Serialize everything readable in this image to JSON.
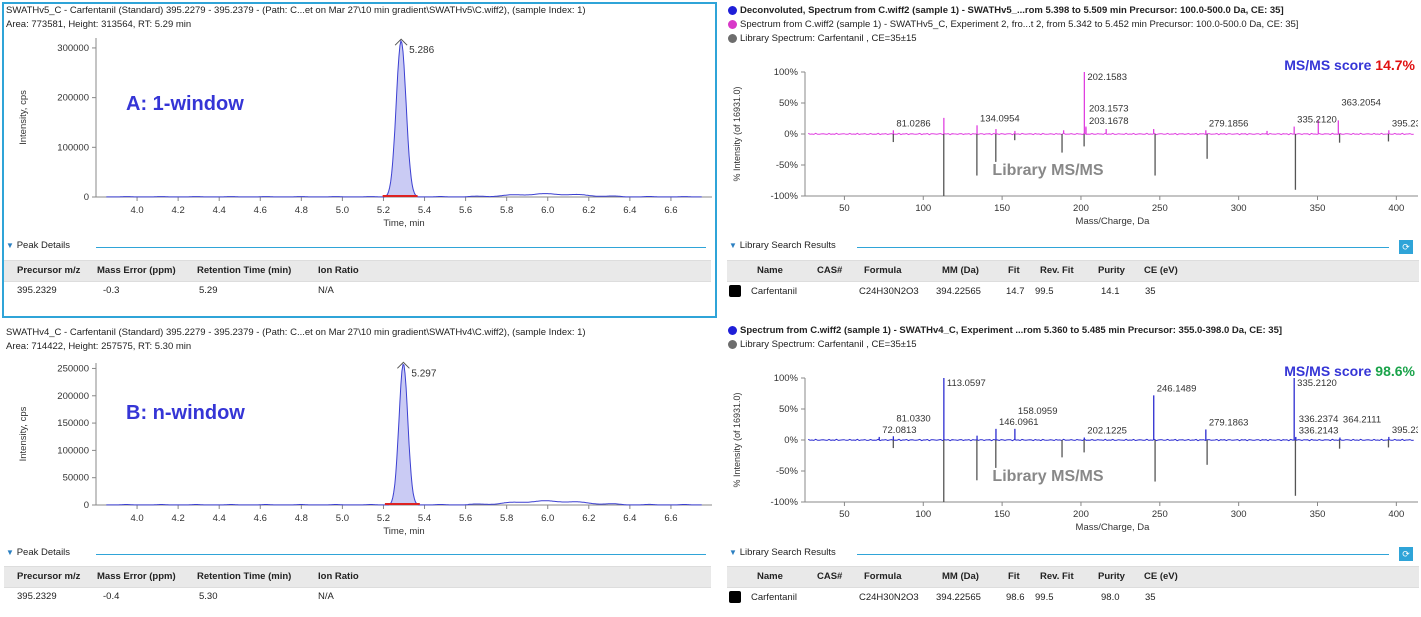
{
  "colors": {
    "selection": "#2fa4d8",
    "trace_blue": "#3b3fd1",
    "label_blue": "#3535d6",
    "library": "#555555",
    "magenta": "#e040e0",
    "score_red": "#e01010",
    "score_green": "#1aa34a",
    "deconv_dot": "#1f1fd8",
    "spectrum_dot": "#d838c8",
    "library_dot": "#6d6d6d"
  },
  "icons": {
    "expand": "triangle-down-icon",
    "search": "search-icon",
    "library_row": "library-entry-icon"
  },
  "panelA": {
    "title": "SWATHv5_C - Carfentanil (Standard) 395.2279 - 395.2379 - (Path: C...et on Mar 27\\10 min gradient\\SWATHv5\\C.wiff2), (sample Index: 1)",
    "stats": "Area: 773581, Height: 313564, RT: 5.29 min",
    "annotation": "A: 1-window",
    "peak_label": "5.286",
    "ylabel": "Intensity, cps",
    "xlabel": "Time, min",
    "section": "Peak Details",
    "table": {
      "headers": [
        "Precursor m/z",
        "Mass Error (ppm)",
        "Retention Time (min)",
        "Ion Ratio"
      ],
      "row": [
        "395.2329",
        "-0.3",
        "5.29",
        "N/A"
      ]
    }
  },
  "panelB": {
    "title": "SWATHv4_C - Carfentanil (Standard) 395.2279 - 395.2379 - (Path: C...et on Mar 27\\10 min gradient\\SWATHv4\\C.wiff2), (sample Index: 1)",
    "stats": "Area: 714422, Height: 257575, RT: 5.30 min",
    "annotation": "B: n-window",
    "peak_label": "5.297",
    "ylabel": "Intensity, cps",
    "xlabel": "Time, min",
    "section": "Peak Details",
    "table": {
      "headers": [
        "Precursor m/z",
        "Mass Error (ppm)",
        "Retention Time (min)",
        "Ion Ratio"
      ],
      "row": [
        "395.2329",
        "-0.4",
        "5.30",
        "N/A"
      ]
    }
  },
  "spectrumA": {
    "legend1": "Deconvoluted, Spectrum from C.wiff2 (sample 1) - SWATHv5_...rom 5.398 to 5.509 min Precursor: 100.0-500.0 Da, CE: 35]",
    "legend2": "Spectrum from C.wiff2 (sample 1) - SWATHv5_C, Experiment 2, fro...t 2, from 5.342 to 5.452 min Precursor: 100.0-500.0 Da, CE: 35]",
    "legend3": "Library Spectrum: Carfentanil , CE=35±15",
    "score_label": "MS/MS score",
    "score_value": "14.7%",
    "library_label": "Library MS/MS",
    "ylabel": "% Intensity (of 16931.0)",
    "xlabel": "Mass/Charge, Da",
    "section": "Library Search Results",
    "table": {
      "headers": [
        "Name",
        "CAS#",
        "Formula",
        "MM (Da)",
        "Fit",
        "Rev. Fit",
        "Purity",
        "CE (eV)"
      ],
      "row": [
        "Carfentanil",
        "",
        "C24H30N2O3",
        "394.22565",
        "14.7",
        "99.5",
        "14.1",
        "35"
      ]
    }
  },
  "spectrumB": {
    "legend1": "Spectrum from C.wiff2 (sample 1) - SWATHv4_C, Experiment ...rom 5.360 to 5.485 min Precursor: 355.0-398.0 Da, CE: 35]",
    "legend2": "Library Spectrum: Carfentanil , CE=35±15",
    "score_label": "MS/MS score",
    "score_value": "98.6%",
    "library_label": "Library MS/MS",
    "ylabel": "% Intensity (of 16931.0)",
    "xlabel": "Mass/Charge, Da",
    "section": "Library Search Results",
    "table": {
      "headers": [
        "Name",
        "CAS#",
        "Formula",
        "MM (Da)",
        "Fit",
        "Rev. Fit",
        "Purity",
        "CE (eV)"
      ],
      "row": [
        "Carfentanil",
        "",
        "C24H30N2O3",
        "394.22565",
        "98.6",
        "99.5",
        "98.0",
        "35"
      ]
    }
  },
  "chart_data": [
    {
      "type": "line",
      "name": "chromatogram-A",
      "x_ticks": [
        4.0,
        4.2,
        4.4,
        4.6,
        4.8,
        5.0,
        5.2,
        5.4,
        5.6,
        5.8,
        6.0,
        6.2,
        6.4,
        6.6
      ],
      "xlim": [
        3.8,
        6.8
      ],
      "ylim": [
        0,
        320000
      ],
      "y_ticks": [
        0,
        100000,
        200000,
        300000
      ],
      "peak": {
        "x": 5.286,
        "y": 313564,
        "width": 0.05
      },
      "baseline_bump": {
        "x": 6.0,
        "y": 6000
      }
    },
    {
      "type": "line",
      "name": "chromatogram-B",
      "x_ticks": [
        4.0,
        4.2,
        4.4,
        4.6,
        4.8,
        5.0,
        5.2,
        5.4,
        5.6,
        5.8,
        6.0,
        6.2,
        6.4,
        6.6
      ],
      "xlim": [
        3.8,
        6.8
      ],
      "ylim": [
        0,
        260000
      ],
      "y_ticks": [
        0,
        50000,
        100000,
        150000,
        200000,
        250000
      ],
      "peak": {
        "x": 5.297,
        "y": 257575,
        "width": 0.045
      },
      "baseline_bump": {
        "x": 6.0,
        "y": 7000
      }
    },
    {
      "type": "bar",
      "name": "msms-A",
      "xlim": [
        25,
        415
      ],
      "ylim": [
        -100,
        100
      ],
      "x_ticks": [
        50,
        100,
        150,
        200,
        250,
        300,
        350,
        400
      ],
      "y_ticks": [
        -100,
        -50,
        0,
        50,
        100
      ],
      "experimental": [
        [
          81.0286,
          6
        ],
        [
          113.06,
          26
        ],
        [
          134.0954,
          14
        ],
        [
          146.1,
          8
        ],
        [
          158.1,
          5
        ],
        [
          189.0,
          6
        ],
        [
          202.1583,
          100
        ],
        [
          203.1573,
          12
        ],
        [
          203.1678,
          10
        ],
        [
          216.0,
          8
        ],
        [
          246.1,
          8
        ],
        [
          279.1856,
          6
        ],
        [
          318.0,
          5
        ],
        [
          335.212,
          12
        ],
        [
          350.5,
          22
        ],
        [
          363.2054,
          22
        ],
        [
          395.2313,
          6
        ]
      ],
      "library": [
        [
          81,
          -13
        ],
        [
          113,
          -100
        ],
        [
          134,
          -67
        ],
        [
          146,
          -45
        ],
        [
          158,
          -10
        ],
        [
          188,
          -30
        ],
        [
          202,
          -20
        ],
        [
          247,
          -67
        ],
        [
          280,
          -40
        ],
        [
          336,
          -90
        ],
        [
          364,
          -14
        ],
        [
          395,
          -12
        ]
      ],
      "labels": [
        [
          81.0286,
          "81.0286"
        ],
        [
          134.0954,
          "134.0954"
        ],
        [
          202.1583,
          "202.1583"
        ],
        [
          203.1573,
          "203.1573"
        ],
        [
          203.1678,
          "203.1678"
        ],
        [
          279.1856,
          "279.1856"
        ],
        [
          335.212,
          "335.2120"
        ],
        [
          363.2054,
          "363.2054"
        ],
        [
          395.2313,
          "395.2313"
        ]
      ]
    },
    {
      "type": "bar",
      "name": "msms-B",
      "xlim": [
        25,
        415
      ],
      "ylim": [
        -100,
        100
      ],
      "x_ticks": [
        50,
        100,
        150,
        200,
        250,
        300,
        350,
        400
      ],
      "y_ticks": [
        -100,
        -50,
        0,
        50,
        100
      ],
      "experimental": [
        [
          72.0813,
          5
        ],
        [
          81.033,
          6
        ],
        [
          113.0597,
          100
        ],
        [
          134.1,
          7
        ],
        [
          146.0961,
          18
        ],
        [
          158.0959,
          18
        ],
        [
          202.1225,
          4
        ],
        [
          246.1489,
          72
        ],
        [
          279.1863,
          17
        ],
        [
          335.212,
          100
        ],
        [
          336.2143,
          4
        ],
        [
          336.2374,
          5
        ],
        [
          364.2111,
          4
        ],
        [
          395.2338,
          5
        ]
      ],
      "library": [
        [
          81,
          -13
        ],
        [
          113,
          -100
        ],
        [
          134,
          -65
        ],
        [
          146,
          -45
        ],
        [
          188,
          -28
        ],
        [
          202,
          -20
        ],
        [
          247,
          -67
        ],
        [
          280,
          -40
        ],
        [
          336,
          -90
        ],
        [
          364,
          -14
        ],
        [
          395,
          -12
        ]
      ],
      "labels": [
        [
          72.0813,
          "72.0813"
        ],
        [
          81.033,
          "81.0330"
        ],
        [
          113.0597,
          "113.0597"
        ],
        [
          146.0961,
          "146.0961"
        ],
        [
          158.0959,
          "158.0959"
        ],
        [
          202.1225,
          "202.1225"
        ],
        [
          246.1489,
          "246.1489"
        ],
        [
          279.1863,
          "279.1863"
        ],
        [
          335.212,
          "335.2120"
        ],
        [
          336.2374,
          "336.2374"
        ],
        [
          336.2143,
          "336.2143"
        ],
        [
          364.2111,
          "364.2111"
        ],
        [
          395.2338,
          "395.2338"
        ]
      ]
    }
  ]
}
